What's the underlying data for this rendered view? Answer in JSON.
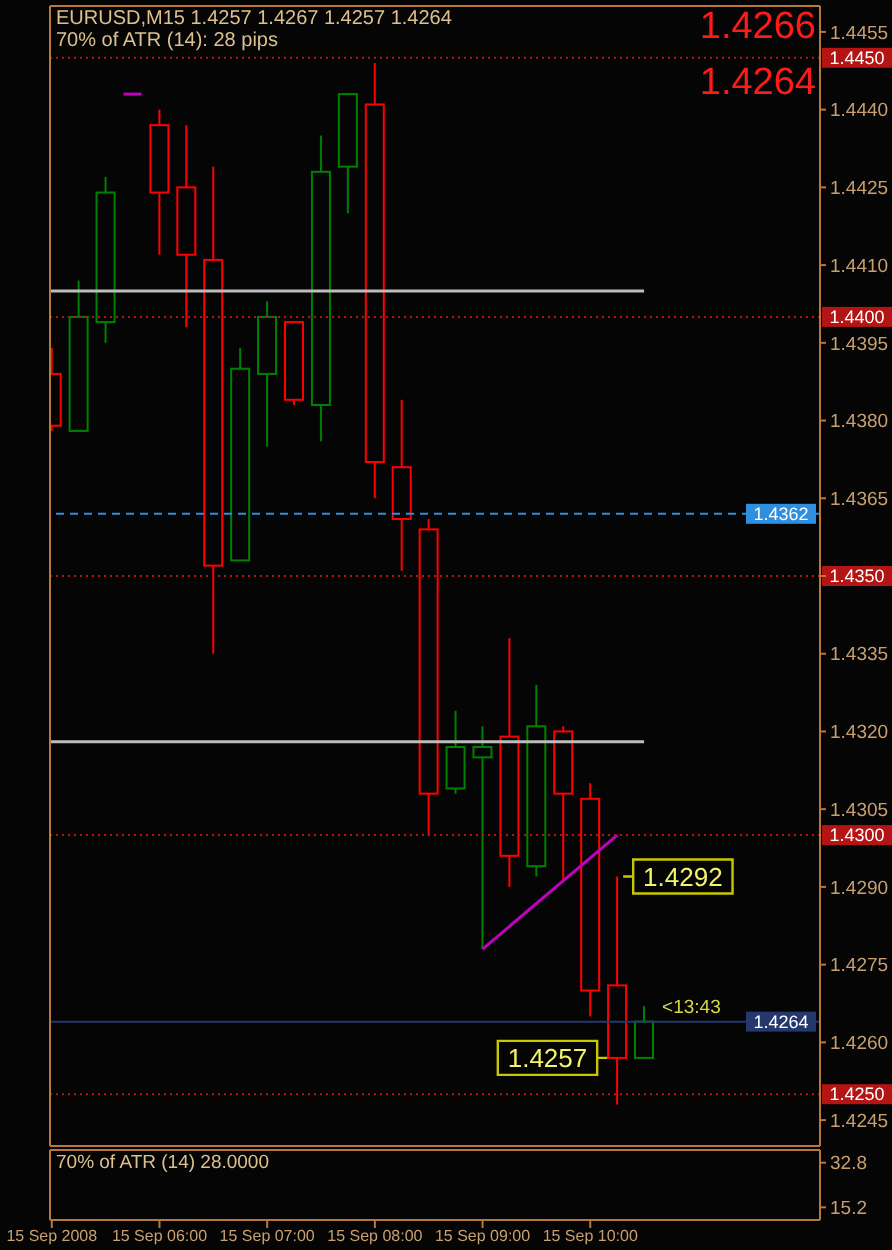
{
  "chart_data": [
    {
      "type": "candlestick",
      "title": "EURUSD,M15 1.4257 1.4267 1.4257 1.4264",
      "subtitle": "70% of ATR (14): 28 pips",
      "x": [
        "2008-09-15T05:00",
        "2008-09-15T05:15",
        "2008-09-15T05:30",
        "2008-09-15T06:00",
        "2008-09-15T06:15",
        "2008-09-15T06:30",
        "2008-09-15T06:45",
        "2008-09-15T07:00",
        "2008-09-15T07:15",
        "2008-09-15T07:30",
        "2008-09-15T07:45",
        "2008-09-15T08:00",
        "2008-09-15T08:15",
        "2008-09-15T08:30",
        "2008-09-15T08:45",
        "2008-09-15T09:00",
        "2008-09-15T09:15",
        "2008-09-15T09:30",
        "2008-09-15T09:45",
        "2008-09-15T10:00",
        "2008-09-15T10:15",
        "2008-09-15T10:30"
      ],
      "ohlc": [
        [
          1.4389,
          1.4394,
          1.4378,
          1.4379
        ],
        [
          1.4378,
          1.4407,
          1.4378,
          1.44
        ],
        [
          1.4399,
          1.4427,
          1.4395,
          1.4424
        ],
        [
          1.4437,
          1.444,
          1.4412,
          1.4424
        ],
        [
          1.4425,
          1.4437,
          1.4398,
          1.4412
        ],
        [
          1.4411,
          1.4429,
          1.4335,
          1.4352
        ],
        [
          1.4353,
          1.4394,
          1.4353,
          1.439
        ],
        [
          1.4389,
          1.4403,
          1.4375,
          1.44
        ],
        [
          1.4399,
          1.4399,
          1.4383,
          1.4384
        ],
        [
          1.4383,
          1.4435,
          1.4376,
          1.4428
        ],
        [
          1.4429,
          1.4443,
          1.442,
          1.4443
        ],
        [
          1.4441,
          1.4449,
          1.4365,
          1.4372
        ],
        [
          1.4371,
          1.4384,
          1.4351,
          1.4361
        ],
        [
          1.4359,
          1.4361,
          1.43,
          1.4308
        ],
        [
          1.4309,
          1.4324,
          1.4308,
          1.4317
        ],
        [
          1.4315,
          1.4321,
          1.4278,
          1.4317
        ],
        [
          1.4319,
          1.4338,
          1.429,
          1.4296
        ],
        [
          1.4294,
          1.4329,
          1.4292,
          1.4321
        ],
        [
          1.432,
          1.4321,
          1.4291,
          1.4308
        ],
        [
          1.4307,
          1.431,
          1.4265,
          1.427
        ],
        [
          1.4271,
          1.4292,
          1.4248,
          1.4257
        ],
        [
          1.4257,
          1.4267,
          1.4257,
          1.4264
        ]
      ],
      "colors": [
        "#ff0000",
        "#008000",
        "#008000",
        "#ff0000",
        "#ff0000",
        "#ff0000",
        "#008000",
        "#008000",
        "#ff0000",
        "#008000",
        "#008000",
        "#ff0000",
        "#ff0000",
        "#ff0000",
        "#008000",
        "#008000",
        "#ff0000",
        "#008000",
        "#ff0000",
        "#ff0000",
        "#ff0000",
        "#008000"
      ],
      "series": [
        {
          "type": "line",
          "x": [
            "2008-09-15T04:59",
            "2008-09-15T10:30"
          ],
          "values": [
            1.4405,
            1.4405
          ],
          "color": "#bdbdbd"
        },
        {
          "type": "line",
          "x": [
            "2008-09-15T04:59",
            "2008-09-15T10:30"
          ],
          "values": [
            1.4318,
            1.4318
          ],
          "color": "#bdbdbd"
        },
        {
          "type": "line",
          "x": [
            "2008-09-15T05:40",
            "2008-09-15T05:50"
          ],
          "values": [
            1.4443,
            1.4443
          ],
          "color": "#c000c0"
        },
        {
          "type": "line",
          "x": [
            "2008-09-15T09:00",
            "2008-09-15T10:15"
          ],
          "values": [
            1.4278,
            1.43
          ],
          "color": "#c000c0"
        }
      ],
      "ref_lines": [
        {
          "axis": "y",
          "value": 1.445,
          "label": "1.4450",
          "color": "#b41414",
          "line_style": "dotted"
        },
        {
          "axis": "y",
          "value": 1.44,
          "label": "1.4400",
          "color": "#b41414",
          "line_style": "dotted"
        },
        {
          "axis": "y",
          "value": 1.435,
          "label": "1.4350",
          "color": "#b41414",
          "line_style": "dotted"
        },
        {
          "axis": "y",
          "value": 1.43,
          "label": "1.4300",
          "color": "#b41414",
          "line_style": "dotted"
        },
        {
          "axis": "y",
          "value": 1.425,
          "label": "1.4250",
          "color": "#b41414",
          "line_style": "dotted"
        },
        {
          "axis": "y",
          "value": 1.4362,
          "label": "1.4362",
          "color": "#2e8fe0",
          "line_style": "dashed"
        },
        {
          "axis": "y",
          "value": 1.4264,
          "label": "1.4264",
          "color": "#24386e",
          "line_style": "solid"
        }
      ],
      "annotations": [
        "1.4266",
        "1.4264",
        {
          "text": "1.4292",
          "x": "2008-09-15T10:15",
          "y": 1.4292
        },
        {
          "text": "1.4257",
          "x": "2008-09-15T10:15",
          "y": 1.4257
        },
        {
          "text": "<13:43",
          "x": "2008-09-15T10:30",
          "y": 1.4267
        }
      ],
      "xlim": [
        "2008-09-15T04:59",
        "2008-09-15T12:08"
      ],
      "ylim": [
        1.424,
        1.446
      ],
      "yticks": [
        1.4455,
        {
          "value": 1.444,
          "label": "1.4440"
        },
        1.4425,
        {
          "value": 1.441,
          "label": "1.4410"
        },
        1.4395,
        {
          "value": 1.438,
          "label": "1.4380"
        },
        1.4365,
        {
          "value": 1.435,
          "label": null
        },
        1.4335,
        {
          "value": 1.432,
          "label": "1.4320"
        },
        1.4305,
        {
          "value": 1.429,
          "label": "1.4290"
        },
        1.4275,
        {
          "value": 1.426,
          "label": "1.4260"
        },
        1.4245
      ],
      "tick_labels": "y"
    },
    {
      "type": "line",
      "title": "70% of ATR (14) 28.0000",
      "xlim": [
        "2008-09-15T04:59",
        "2008-09-15T12:08"
      ],
      "xticks": [
        {
          "value": "2008-09-15T05:00",
          "label": "15 Sep 2008"
        },
        {
          "value": "2008-09-15T06:00",
          "label": "15 Sep 06:00"
        },
        {
          "value": "2008-09-15T07:00",
          "label": "15 Sep 07:00"
        },
        {
          "value": "2008-09-15T08:00",
          "label": "15 Sep 08:00"
        },
        {
          "value": "2008-09-15T09:00",
          "label": "15 Sep 09:00"
        },
        {
          "value": "2008-09-15T10:00",
          "label": "15 Sep 10:00"
        }
      ],
      "ylim": [
        10.2,
        37.8
      ],
      "yticks": [
        32.8,
        15.2
      ]
    }
  ]
}
